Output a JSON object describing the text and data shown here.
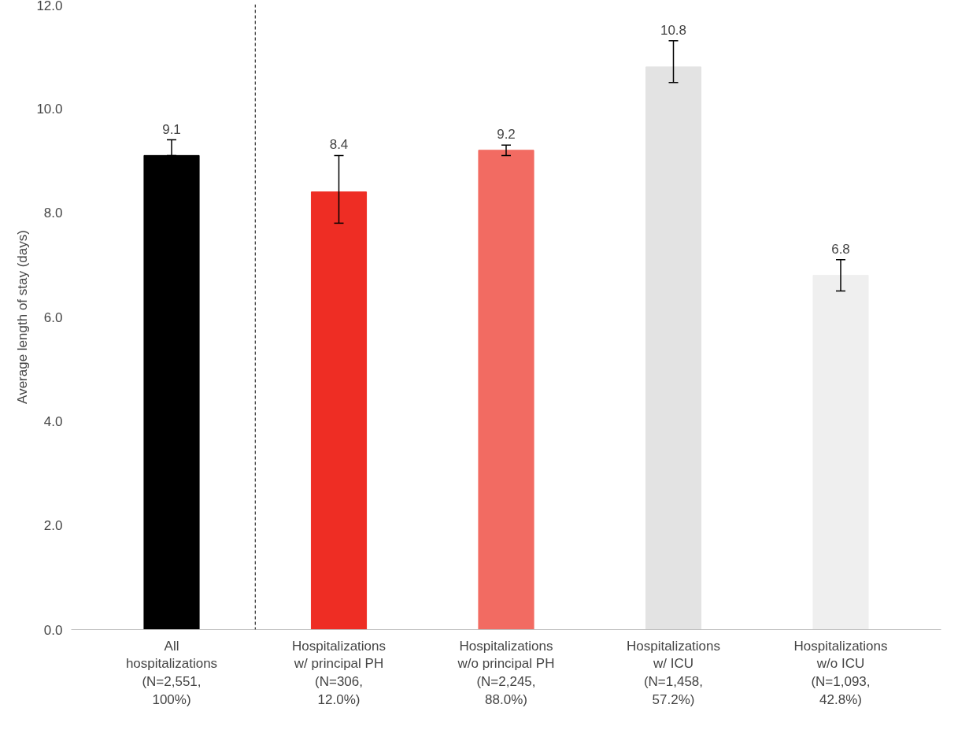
{
  "chart_data": {
    "type": "bar",
    "ylabel": "Average length of stay (days)",
    "categories": [
      "All\nhospitalizations\n(N=2,551,\n100%)",
      "Hospitalizations\nw/ principal PH\n(N=306,\n12.0%)",
      "Hospitalizations\nw/o principal PH\n(N=2,245,\n88.0%)",
      "Hospitalizations\nw/ ICU\n(N=1,458,\n57.2%)",
      "Hospitalizations\nw/o ICU\n(N=1,093,\n42.8%)"
    ],
    "values": [
      9.1,
      8.4,
      9.2,
      10.8,
      6.8
    ],
    "colors": [
      "#000000",
      "#ee2d24",
      "#f26b62",
      "#e3e3e3",
      "#efefef"
    ],
    "errors": [
      [
        9.1,
        9.4
      ],
      [
        7.8,
        9.1
      ],
      [
        9.1,
        9.3
      ],
      [
        10.5,
        11.3
      ],
      [
        6.5,
        7.1
      ]
    ],
    "data_labels": true,
    "ylim": [
      0,
      12
    ],
    "yticks": [
      {
        "value": 0,
        "label": "0.0"
      },
      {
        "value": 2,
        "label": "2.0"
      },
      {
        "value": 4,
        "label": "4.0"
      },
      {
        "value": 6,
        "label": "6.0"
      },
      {
        "value": 8,
        "label": "8.0"
      },
      {
        "value": 10,
        "label": "10.0"
      },
      {
        "value": 12,
        "label": "12.0"
      }
    ],
    "grid": false
  }
}
